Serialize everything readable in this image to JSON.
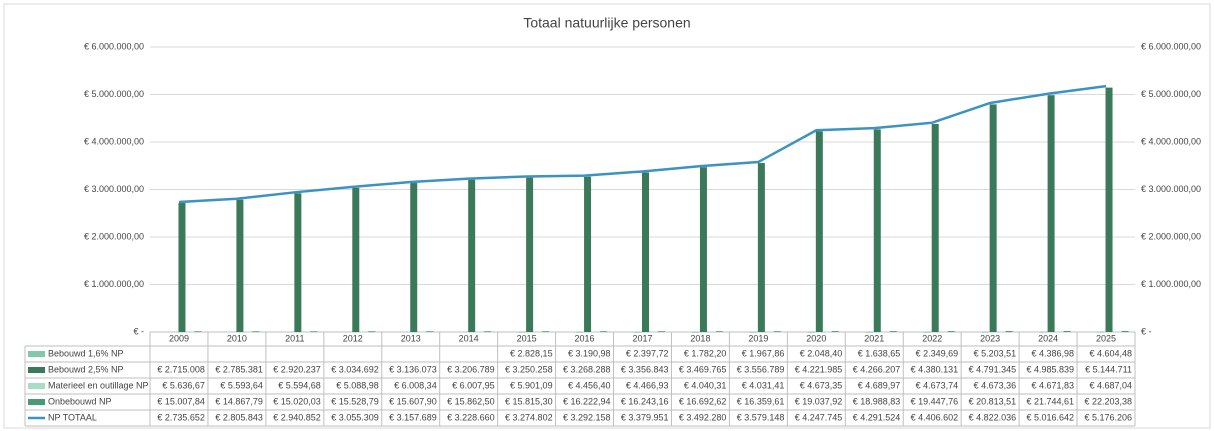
{
  "chart_data": {
    "type": "bar",
    "title": "Totaal natuurlijke personen",
    "categories": [
      "2009",
      "2010",
      "2011",
      "2012",
      "2013",
      "2014",
      "2015",
      "2016",
      "2017",
      "2018",
      "2019",
      "2020",
      "2021",
      "2022",
      "2023",
      "2024",
      "2025"
    ],
    "series": [
      {
        "name": "Bebouwd 1,6% NP",
        "color": "#7fc8a9",
        "type": "bar",
        "values": [
          null,
          null,
          null,
          null,
          null,
          null,
          2828.15,
          3190.98,
          2397.72,
          1782.2,
          1967.86,
          2048.4,
          1638.65,
          2349.69,
          5203.51,
          4386.98,
          4604.48
        ],
        "value_labels": [
          null,
          null,
          null,
          null,
          null,
          null,
          "€ 2.828,15",
          "€ 3.190,98",
          "€ 2.397,72",
          "€ 1.782,20",
          "€ 1.967,86",
          "€ 2.048,40",
          "€ 1.638,65",
          "€ 2.349,69",
          "€ 5.203,51",
          "€ 4.386,98",
          "€ 4.604,48"
        ]
      },
      {
        "name": "Bebouwd 2,5% NP",
        "color": "#3a7a5a",
        "type": "bar",
        "values": [
          2715008,
          2785381,
          2920237,
          3034692,
          3136073,
          3206789,
          3250258,
          3268288,
          3356843,
          3469765,
          3556789,
          4221985,
          4266207,
          4380131,
          4791345,
          4985839,
          5144711
        ],
        "value_labels": [
          "€ 2.715.008",
          "€ 2.785.381",
          "€ 2.920.237",
          "€ 3.034.692",
          "€ 3.136.073",
          "€ 3.206.789",
          "€ 3.250.258",
          "€ 3.268.288",
          "€ 3.356.843",
          "€ 3.469.765",
          "€ 3.556.789",
          "€ 4.221.985",
          "€ 4.266.207",
          "€ 4.380.131",
          "€ 4.791.345",
          "€ 4.985.839",
          "€ 5.144.711"
        ]
      },
      {
        "name": "Materieel en outillage NP",
        "color": "#a8dcc5",
        "type": "bar",
        "values": [
          5636.67,
          5593.64,
          5594.68,
          5088.98,
          6008.34,
          6007.95,
          5901.09,
          4456.4,
          4466.93,
          4040.31,
          4031.41,
          4673.35,
          4689.97,
          4673.74,
          4673.36,
          4671.83,
          4687.04
        ],
        "value_labels": [
          "€ 5.636,67",
          "€ 5.593,64",
          "€ 5.594,68",
          "€ 5.088,98",
          "€ 6.008,34",
          "€ 6.007,95",
          "€ 5.901,09",
          "€ 4.456,40",
          "€ 4.466,93",
          "€ 4.040,31",
          "€ 4.031,41",
          "€ 4.673,35",
          "€ 4.689,97",
          "€ 4.673,74",
          "€ 4.673,36",
          "€ 4.671,83",
          "€ 4.687,04"
        ]
      },
      {
        "name": "Onbebouwd NP",
        "color": "#4a9a78",
        "type": "bar",
        "values": [
          15007.84,
          14867.79,
          15020.03,
          15528.79,
          15607.9,
          15862.5,
          15815.3,
          16222.94,
          16243.16,
          16692.62,
          16359.61,
          19037.92,
          18988.83,
          19447.76,
          20813.51,
          21744.61,
          22203.38
        ],
        "value_labels": [
          "€ 15.007,84",
          "€ 14.867,79",
          "€ 15.020,03",
          "€ 15.528,79",
          "€ 15.607,90",
          "€ 15.862,50",
          "€ 15.815,30",
          "€ 16.222,94",
          "€ 16.243,16",
          "€ 16.692,62",
          "€ 16.359,61",
          "€ 19.037,92",
          "€ 18.988,83",
          "€ 19.447,76",
          "€ 20.813,51",
          "€ 21.744,61",
          "€ 22.203,38"
        ]
      },
      {
        "name": "NP TOTAAL",
        "color": "#3a93c3",
        "type": "line",
        "axis": "y2",
        "values": [
          2735652,
          2805843,
          2940852,
          3055309,
          3157689,
          3228660,
          3274802,
          3292158,
          3379951,
          3492280,
          3579148,
          4247745,
          4291524,
          4406602,
          4822036,
          5016642,
          5176206
        ],
        "value_labels": [
          "€ 2.735.652",
          "€ 2.805.843",
          "€ 2.940.852",
          "€ 3.055.309",
          "€ 3.157.689",
          "€ 3.228.660",
          "€ 3.274.802",
          "€ 3.292.158",
          "€ 3.379.951",
          "€ 3.492.280",
          "€ 3.579.148",
          "€ 4.247.745",
          "€ 4.291.524",
          "€ 4.406.602",
          "€ 4.822.036",
          "€ 5.016.642",
          "€ 5.176.206"
        ]
      }
    ],
    "ylim": [
      0,
      6000000
    ],
    "yticks": [
      {
        "value": 0,
        "label": "€ -"
      },
      {
        "value": 1000000,
        "label": "€ 1.000.000,00"
      },
      {
        "value": 2000000,
        "label": "€ 2.000.000,00"
      },
      {
        "value": 3000000,
        "label": "€ 3.000.000,00"
      },
      {
        "value": 4000000,
        "label": "€ 4.000.000,00"
      },
      {
        "value": 5000000,
        "label": "€ 5.000.000,00"
      },
      {
        "value": 6000000,
        "label": "€ 6.000.000,00"
      }
    ],
    "y2lim": [
      0,
      6000000
    ],
    "y2ticks": [
      {
        "value": 0,
        "label": "€ -"
      },
      {
        "value": 1000000,
        "label": "€ 1.000.000,00"
      },
      {
        "value": 2000000,
        "label": "€ 2.000.000,00"
      },
      {
        "value": 3000000,
        "label": "€ 3.000.000,00"
      },
      {
        "value": 4000000,
        "label": "€ 4.000.000,00"
      },
      {
        "value": 5000000,
        "label": "€ 5.000.000,00"
      },
      {
        "value": 6000000,
        "label": "€ 6.000.000,00"
      }
    ],
    "grid": true
  }
}
